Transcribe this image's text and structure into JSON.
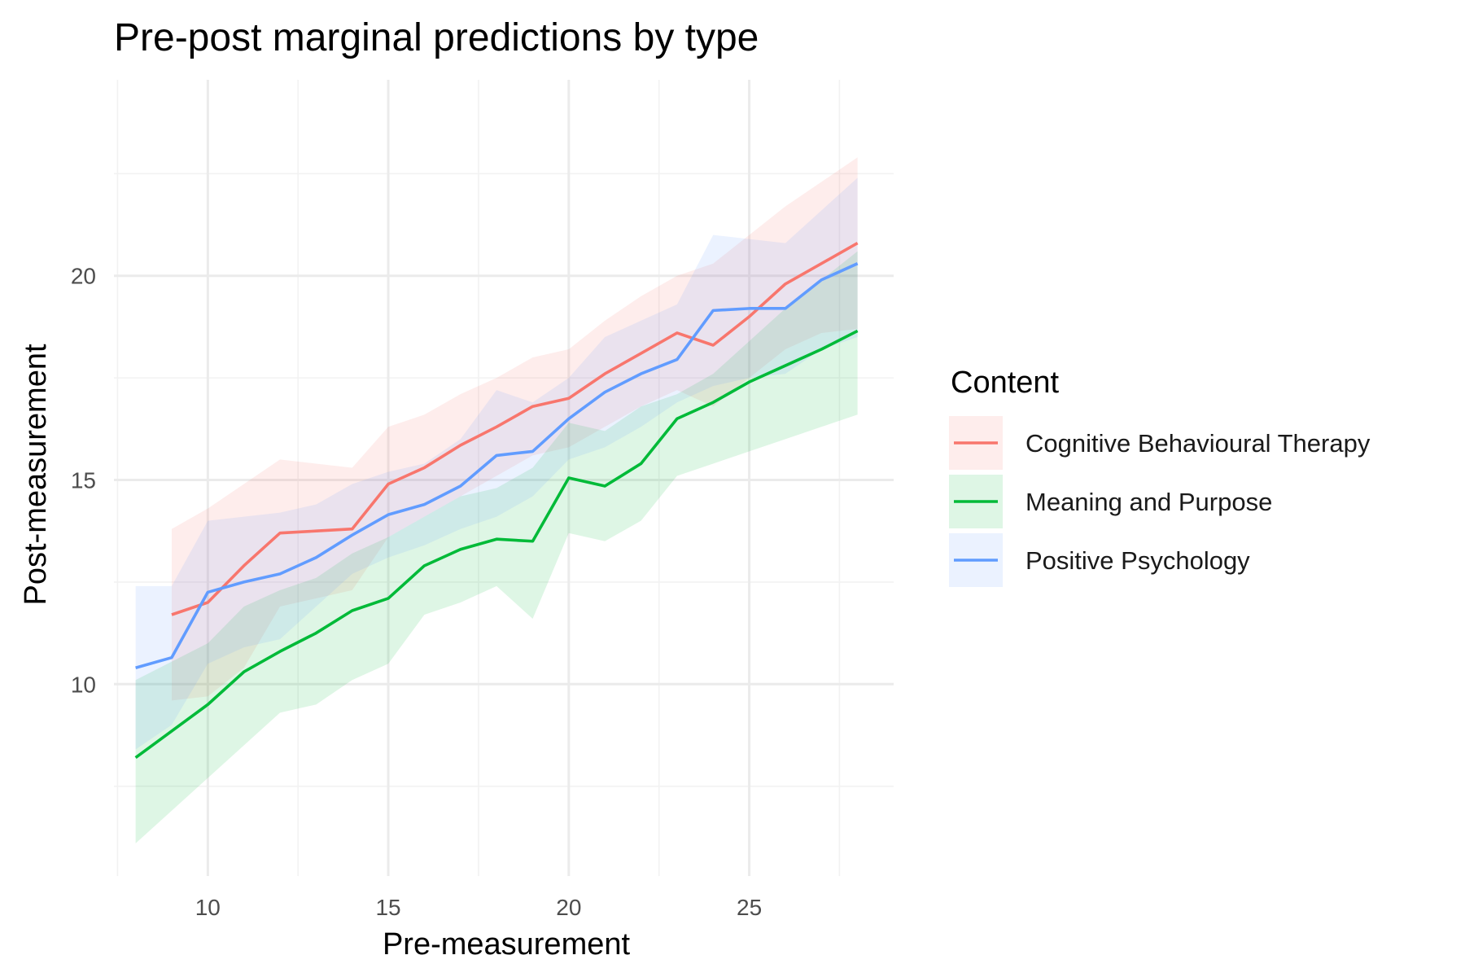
{
  "chart_data": {
    "type": "line",
    "title": "Pre-post marginal predictions by type",
    "xlabel": "Pre-measurement",
    "ylabel": "Post-measurement",
    "xlim": [
      7.4,
      29
    ],
    "ylim": [
      5.3,
      24.8
    ],
    "x_ticks": [
      10,
      15,
      20,
      25
    ],
    "y_ticks": [
      10,
      15,
      20
    ],
    "grid": true,
    "legend": {
      "title": "Content",
      "position": "right"
    },
    "series": [
      {
        "name": "Cognitive Behavioural Therapy",
        "color": "#F8766D",
        "x": [
          9,
          10,
          11,
          12,
          13,
          14,
          15,
          16,
          17,
          18,
          19,
          20,
          21,
          22,
          23,
          24,
          25,
          26,
          27,
          28
        ],
        "y": [
          11.7,
          12.0,
          12.9,
          13.7,
          13.75,
          13.8,
          14.9,
          15.3,
          15.85,
          16.3,
          16.8,
          17.0,
          17.6,
          18.1,
          18.6,
          18.3,
          19.0,
          19.8,
          20.3,
          20.8
        ],
        "lower": [
          9.6,
          9.7,
          10.4,
          11.9,
          12.1,
          12.3,
          13.6,
          14.1,
          14.6,
          15.1,
          15.6,
          15.8,
          16.3,
          16.8,
          17.2,
          16.8,
          17.5,
          18.2,
          18.6,
          18.7
        ],
        "upper": [
          13.8,
          14.3,
          14.9,
          15.5,
          15.4,
          15.3,
          16.3,
          16.6,
          17.1,
          17.5,
          18.0,
          18.2,
          18.9,
          19.5,
          20.0,
          20.3,
          21.0,
          21.7,
          22.3,
          22.9
        ]
      },
      {
        "name": "Meaning and Purpose",
        "color": "#00BA38",
        "x": [
          8,
          10,
          11,
          12,
          13,
          14,
          15,
          16,
          17,
          18,
          19,
          20,
          21,
          22,
          23,
          24,
          25,
          26,
          27,
          28
        ],
        "y": [
          8.2,
          9.5,
          10.3,
          10.8,
          11.25,
          11.8,
          12.1,
          12.9,
          13.3,
          13.55,
          13.5,
          15.05,
          14.85,
          15.4,
          16.5,
          16.9,
          17.4,
          17.8,
          18.2,
          18.65
        ],
        "lower": [
          6.1,
          7.7,
          8.5,
          9.3,
          9.5,
          10.1,
          10.5,
          11.7,
          12.0,
          12.4,
          11.6,
          13.7,
          13.5,
          14.0,
          15.1,
          15.4,
          15.7,
          16.0,
          16.3,
          16.6
        ],
        "upper": [
          10.1,
          11.0,
          11.9,
          12.3,
          12.6,
          13.2,
          13.6,
          14.1,
          14.6,
          14.8,
          15.3,
          16.4,
          16.2,
          16.8,
          17.1,
          17.6,
          18.4,
          19.2,
          19.9,
          20.6
        ]
      },
      {
        "name": "Positive Psychology",
        "color": "#619CFF",
        "x": [
          8,
          9,
          10,
          11,
          12,
          13,
          14,
          15,
          16,
          17,
          18,
          19,
          20,
          21,
          22,
          23,
          24,
          25,
          26,
          27,
          28
        ],
        "y": [
          10.4,
          10.65,
          12.25,
          12.5,
          12.7,
          13.1,
          13.65,
          14.15,
          14.4,
          14.85,
          15.6,
          15.7,
          16.5,
          17.15,
          17.6,
          17.95,
          19.15,
          19.2,
          19.2,
          19.9,
          20.3
        ],
        "lower": [
          8.4,
          9.0,
          10.5,
          10.9,
          11.1,
          11.9,
          12.7,
          13.1,
          13.4,
          13.8,
          14.1,
          14.6,
          15.5,
          15.8,
          16.3,
          16.9,
          17.3,
          17.5,
          17.6,
          18.2,
          18.5
        ],
        "upper": [
          12.4,
          12.4,
          14.0,
          14.1,
          14.2,
          14.4,
          14.9,
          15.2,
          15.4,
          16.0,
          17.2,
          16.9,
          17.5,
          18.5,
          18.9,
          19.3,
          21.0,
          20.9,
          20.8,
          21.6,
          22.4
        ]
      }
    ]
  }
}
